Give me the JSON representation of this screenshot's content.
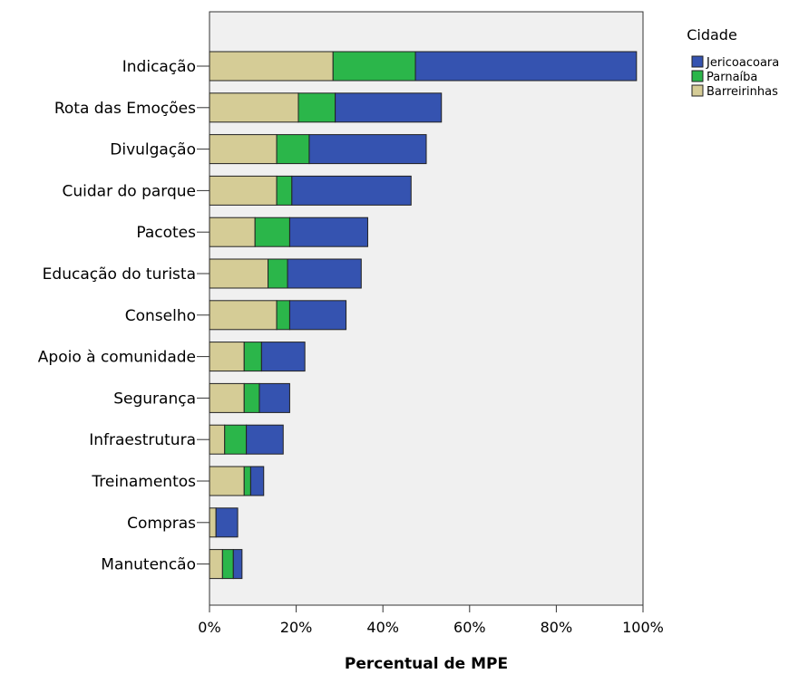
{
  "chart_data": {
    "type": "bar",
    "orientation": "horizontal",
    "stacked": true,
    "categories": [
      "Indicação",
      "Rota das Emoções",
      "Divulgação",
      "Cuidar do parque",
      "Pacotes",
      "Educação do turista",
      "Conselho",
      "Apoio à comunidade",
      "Segurança",
      "Infraestrutura",
      "Treinamentos",
      "Compras",
      "Manutencão"
    ],
    "series": [
      {
        "name": "Barreirinhas",
        "color": "#d5cc96",
        "values": [
          28.5,
          20.5,
          15.5,
          15.5,
          10.5,
          13.5,
          15.5,
          8,
          8,
          3.5,
          8,
          1.5,
          3
        ]
      },
      {
        "name": "Parnaíba",
        "color": "#2bb64a",
        "values": [
          19,
          8.5,
          7.5,
          3.5,
          8,
          4.5,
          3,
          4,
          3.5,
          5,
          1.5,
          0,
          2.5
        ]
      },
      {
        "name": "Jericoacoara",
        "color": "#3553b0",
        "values": [
          51,
          24.5,
          27,
          27.5,
          18,
          17,
          13,
          10,
          7,
          8.5,
          3,
          5,
          2
        ]
      }
    ],
    "xlabel": "Percentual de MPE",
    "ylabel": "",
    "xlim": [
      0,
      100
    ],
    "ticks": [
      "0%",
      "20%",
      "40%",
      "60%",
      "80%",
      "100%"
    ],
    "legend": {
      "title": "Cidade",
      "position": "right",
      "entries": [
        "Jericoacoara",
        "Parnaíba",
        "Barreirinhas"
      ]
    },
    "background": "#f0f0f0"
  }
}
